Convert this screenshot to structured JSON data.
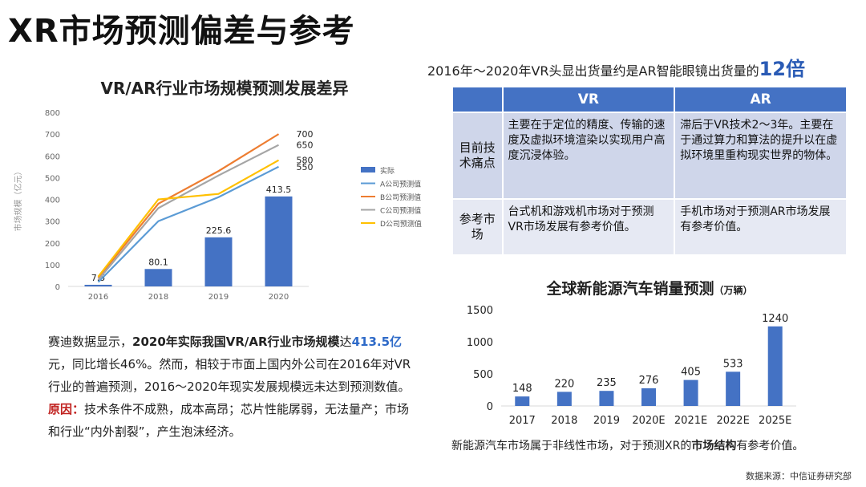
{
  "page": {
    "title": "XR市场预测偏差与参考"
  },
  "left": {
    "chart_title": "VR/AR行业市场规模预测发展差异",
    "desc": {
      "p1_a": "赛迪数据显示，",
      "p1_b": "2020年实际我国VR/AR行业市场规模",
      "p1_c": "达",
      "p1_d": "413.5亿",
      "p1_e": "元，同比增长46%。然而，相较于市面上国内外公司在2016年对VR行业的普遍预测，2016～2020年现实发展规模远未达到预测数值。",
      "p2_label": "原因：",
      "p2_text": "技术条件不成熟，成本高昂；芯片性能孱弱，无法量产；市场和行业“内外割裂”，产生泡沫经济。"
    }
  },
  "right": {
    "header_text": "2016年～2020年VR头显出货量约是AR智能眼镜出货量的",
    "header_big": "12倍",
    "table": {
      "headers": [
        "",
        "VR",
        "AR"
      ],
      "rows": [
        {
          "label": "目前技术痛点",
          "vr": "主要在于定位的精度、传输的速度及虚拟环境渲染以实现用户高度沉浸体验。",
          "ar": "滞后于VR技术2～3年。主要在于通过算力和算法的提升以在虚拟环境里重构现实世界的物体。"
        },
        {
          "label": "参考市场",
          "vr": "台式机和游戏机市场对于预测VR市场发展有参考价值。",
          "ar": "手机市场对于预测AR市场发展有参考价值。"
        }
      ]
    },
    "chart2_title": "全球新能源汽车销量预测",
    "chart2_unit": "（万辆）",
    "note_a": "新能源汽车市场属于非线性市场，对于预测XR的",
    "note_b": "市场结构",
    "note_c": "有参考价值。"
  },
  "source": "数据来源：中信证券研究部",
  "chart_data": [
    {
      "type": "bar",
      "title": "VR/AR行业市场规模预测发展差异",
      "ylabel": "市场规模（亿元）",
      "categories": [
        "2016",
        "2018",
        "2019",
        "2020"
      ],
      "ylim": [
        0,
        800
      ],
      "yticks": [
        0,
        100,
        200,
        300,
        400,
        500,
        600,
        700,
        800
      ],
      "grid": false,
      "legend_position": "right",
      "series": [
        {
          "name": "实际",
          "kind": "bar",
          "color": "#4472c4",
          "values": [
            7.5,
            80.1,
            225.6,
            413.5
          ],
          "labels": [
            "7.5",
            "80.1",
            "225.6",
            "413.5"
          ]
        },
        {
          "name": "A公司预测值",
          "kind": "line",
          "color": "#5b9bd5",
          "values": [
            20,
            300,
            410,
            550
          ],
          "end_label": "550"
        },
        {
          "name": "B公司预测值",
          "kind": "line",
          "color": "#ed7d31",
          "values": [
            40,
            380,
            530,
            700
          ],
          "end_label": "700"
        },
        {
          "name": "C公司预测值",
          "kind": "line",
          "color": "#a5a5a5",
          "values": [
            30,
            360,
            510,
            650
          ],
          "end_label": "650"
        },
        {
          "name": "D公司预测值",
          "kind": "line",
          "color": "#ffc000",
          "values": [
            45,
            400,
            425,
            580
          ],
          "end_label": "580"
        }
      ]
    },
    {
      "type": "bar",
      "title": "全球新能源汽车销量预测",
      "categories": [
        "2017",
        "2018",
        "2019",
        "2020E",
        "2021E",
        "2022E",
        "2025E"
      ],
      "values": [
        148,
        220,
        235,
        276,
        405,
        533,
        1240
      ],
      "ylim": [
        0,
        1500
      ],
      "yticks": [
        0,
        500,
        1000,
        1500
      ],
      "color": "#4472c4",
      "grid": false
    }
  ]
}
